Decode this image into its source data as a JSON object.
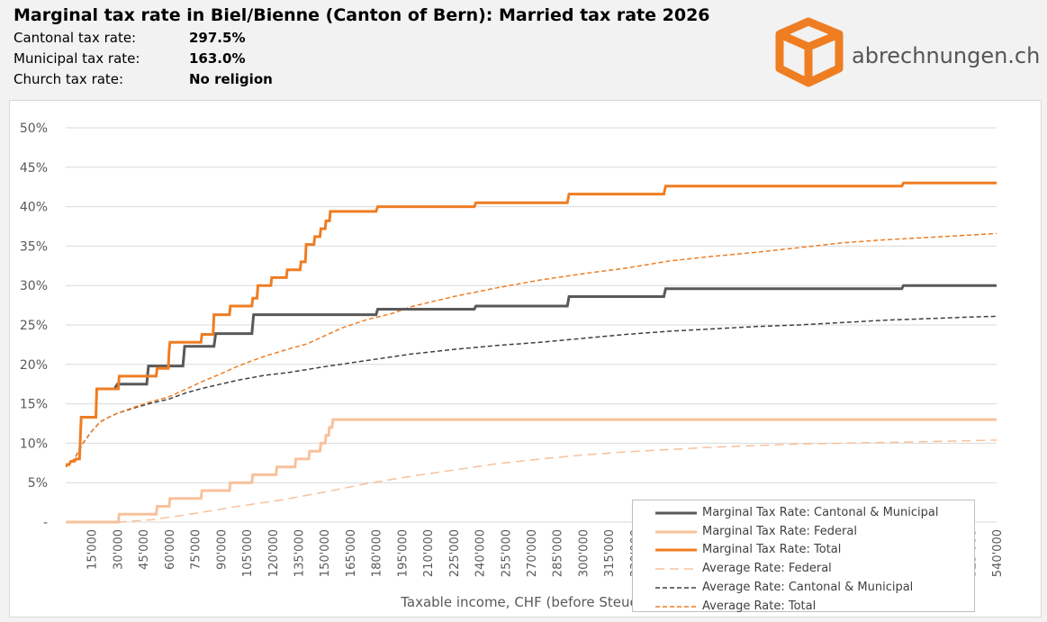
{
  "header": {
    "title": "Marginal tax rate in Biel/Bienne (Canton of Bern): Married tax rate 2026",
    "rows": [
      {
        "label": "Cantonal tax rate:",
        "value": "297.5%"
      },
      {
        "label": "Municipal tax rate:",
        "value": "163.0%"
      },
      {
        "label": "Church tax rate:",
        "value": "No religion"
      }
    ]
  },
  "logo": {
    "text": "abrechnungen.ch",
    "color": "#ef7d22"
  },
  "chart_data": {
    "type": "line",
    "title": "",
    "xlabel": "Taxable income, CHF (before Steuerfreibetrag)",
    "ylabel": "",
    "xlim": [
      0,
      540000
    ],
    "ylim": [
      0,
      0.5
    ],
    "x_ticks": [
      "15'000",
      "30'000",
      "45'000",
      "60'000",
      "75'000",
      "90'000",
      "105'000",
      "120'000",
      "135'000",
      "150'000",
      "165'000",
      "180'000",
      "195'000",
      "210'000",
      "225'000",
      "240'000",
      "255'000",
      "270'000",
      "285'000",
      "300'000",
      "315'000",
      "330'000",
      "345'000",
      "360'000",
      "375'000",
      "390'000",
      "405'000",
      "420'000",
      "435'000",
      "450'000",
      "465'000",
      "480'000",
      "495'000",
      "510'000",
      "525'000",
      "540'000"
    ],
    "x_tick_values": [
      15000,
      30000,
      45000,
      60000,
      75000,
      90000,
      105000,
      120000,
      135000,
      150000,
      165000,
      180000,
      195000,
      210000,
      225000,
      240000,
      255000,
      270000,
      285000,
      300000,
      315000,
      330000,
      345000,
      360000,
      375000,
      390000,
      405000,
      420000,
      435000,
      450000,
      465000,
      480000,
      495000,
      510000,
      525000,
      540000
    ],
    "y_ticks": [
      "-",
      "5%",
      "10%",
      "15%",
      "20%",
      "25%",
      "30%",
      "35%",
      "40%",
      "45%",
      "50%"
    ],
    "y_tick_values": [
      0,
      0.05,
      0.1,
      0.15,
      0.2,
      0.25,
      0.3,
      0.35,
      0.4,
      0.45,
      0.5
    ],
    "grid": "horizontal",
    "legend_position": "bottom-right",
    "series": [
      {
        "name": "Marginal Tax Rate: Cantonal & Municipal",
        "style": "solid",
        "color": "#595959",
        "points": [
          [
            28000,
            0.168
          ],
          [
            30000,
            0.175
          ],
          [
            47000,
            0.175
          ],
          [
            48000,
            0.198
          ],
          [
            68000,
            0.198
          ],
          [
            69000,
            0.223
          ],
          [
            86000,
            0.223
          ],
          [
            87000,
            0.239
          ],
          [
            108000,
            0.239
          ],
          [
            109000,
            0.263
          ],
          [
            180000,
            0.263
          ],
          [
            181000,
            0.27
          ],
          [
            237000,
            0.27
          ],
          [
            238000,
            0.274
          ],
          [
            291000,
            0.274
          ],
          [
            292000,
            0.286
          ],
          [
            347000,
            0.286
          ],
          [
            348000,
            0.296
          ],
          [
            485000,
            0.296
          ],
          [
            486000,
            0.3
          ],
          [
            540000,
            0.3
          ]
        ]
      },
      {
        "name": "Marginal Tax Rate: Federal",
        "style": "solid",
        "color": "#f8c19b",
        "points": [
          [
            0,
            0
          ],
          [
            30500,
            0
          ],
          [
            31000,
            0.01
          ],
          [
            52500,
            0.01
          ],
          [
            53000,
            0.02
          ],
          [
            60000,
            0.02
          ],
          [
            60500,
            0.03
          ],
          [
            78500,
            0.03
          ],
          [
            79000,
            0.04
          ],
          [
            95000,
            0.04
          ],
          [
            95500,
            0.05
          ],
          [
            108000,
            0.05
          ],
          [
            108500,
            0.06
          ],
          [
            122000,
            0.06
          ],
          [
            122500,
            0.07
          ],
          [
            133000,
            0.07
          ],
          [
            133500,
            0.08
          ],
          [
            141000,
            0.08
          ],
          [
            141500,
            0.09
          ],
          [
            147500,
            0.09
          ],
          [
            148000,
            0.1
          ],
          [
            150500,
            0.1
          ],
          [
            151000,
            0.11
          ],
          [
            152500,
            0.11
          ],
          [
            153000,
            0.12
          ],
          [
            154500,
            0.12
          ],
          [
            155000,
            0.13
          ],
          [
            540000,
            0.13
          ]
        ]
      },
      {
        "name": "Marginal Tax Rate: Total",
        "style": "solid",
        "color": "#ef7d22",
        "points": [
          [
            0,
            0.073
          ],
          [
            2000,
            0.073
          ],
          [
            3000,
            0.077
          ],
          [
            5000,
            0.077
          ],
          [
            6000,
            0.08
          ],
          [
            8000,
            0.08
          ],
          [
            9000,
            0.133
          ],
          [
            17500,
            0.133
          ],
          [
            18000,
            0.169
          ],
          [
            30500,
            0.169
          ],
          [
            31000,
            0.185
          ],
          [
            52500,
            0.185
          ],
          [
            53000,
            0.195
          ],
          [
            59500,
            0.195
          ],
          [
            60000,
            0.218
          ],
          [
            60500,
            0.228
          ],
          [
            78500,
            0.228
          ],
          [
            79000,
            0.238
          ],
          [
            85500,
            0.238
          ],
          [
            86000,
            0.263
          ],
          [
            95000,
            0.263
          ],
          [
            95500,
            0.274
          ],
          [
            108000,
            0.274
          ],
          [
            108500,
            0.284
          ],
          [
            111000,
            0.284
          ],
          [
            111500,
            0.3
          ],
          [
            119000,
            0.3
          ],
          [
            119500,
            0.31
          ],
          [
            128000,
            0.31
          ],
          [
            128500,
            0.32
          ],
          [
            136000,
            0.32
          ],
          [
            136500,
            0.33
          ],
          [
            139000,
            0.33
          ],
          [
            139500,
            0.352
          ],
          [
            144000,
            0.352
          ],
          [
            144500,
            0.362
          ],
          [
            147500,
            0.362
          ],
          [
            148000,
            0.372
          ],
          [
            150500,
            0.372
          ],
          [
            151000,
            0.382
          ],
          [
            153000,
            0.382
          ],
          [
            153500,
            0.394
          ],
          [
            180000,
            0.394
          ],
          [
            181000,
            0.4
          ],
          [
            237000,
            0.4
          ],
          [
            238000,
            0.405
          ],
          [
            291000,
            0.405
          ],
          [
            292000,
            0.416
          ],
          [
            347000,
            0.416
          ],
          [
            348000,
            0.426
          ],
          [
            485000,
            0.426
          ],
          [
            486000,
            0.43
          ],
          [
            540000,
            0.43
          ]
        ]
      },
      {
        "name": "Average Rate: Federal",
        "style": "dashed",
        "color": "#f8c19b",
        "points": [
          [
            30000,
            0
          ],
          [
            50000,
            0.003
          ],
          [
            75000,
            0.011
          ],
          [
            100000,
            0.02
          ],
          [
            125000,
            0.028
          ],
          [
            150000,
            0.038
          ],
          [
            175000,
            0.049
          ],
          [
            200000,
            0.058
          ],
          [
            225000,
            0.066
          ],
          [
            250000,
            0.074
          ],
          [
            275000,
            0.08
          ],
          [
            300000,
            0.085
          ],
          [
            325000,
            0.089
          ],
          [
            350000,
            0.092
          ],
          [
            375000,
            0.095
          ],
          [
            400000,
            0.097
          ],
          [
            425000,
            0.099
          ],
          [
            450000,
            0.1
          ],
          [
            475000,
            0.101
          ],
          [
            500000,
            0.102
          ],
          [
            520000,
            0.103
          ],
          [
            540000,
            0.104
          ]
        ]
      },
      {
        "name": "Average Rate: Cantonal & Municipal",
        "style": "dashed",
        "color": "#404040",
        "points": [
          [
            0,
            0.07
          ],
          [
            5000,
            0.08
          ],
          [
            10000,
            0.1
          ],
          [
            15000,
            0.115
          ],
          [
            20000,
            0.127
          ],
          [
            25000,
            0.133
          ],
          [
            30000,
            0.138
          ],
          [
            40000,
            0.145
          ],
          [
            50000,
            0.151
          ],
          [
            60000,
            0.156
          ],
          [
            70000,
            0.164
          ],
          [
            80000,
            0.17
          ],
          [
            90000,
            0.175
          ],
          [
            100000,
            0.18
          ],
          [
            115000,
            0.186
          ],
          [
            130000,
            0.19
          ],
          [
            150000,
            0.197
          ],
          [
            175000,
            0.205
          ],
          [
            200000,
            0.213
          ],
          [
            225000,
            0.219
          ],
          [
            250000,
            0.224
          ],
          [
            275000,
            0.228
          ],
          [
            300000,
            0.233
          ],
          [
            325000,
            0.238
          ],
          [
            350000,
            0.242
          ],
          [
            375000,
            0.245
          ],
          [
            400000,
            0.248
          ],
          [
            425000,
            0.25
          ],
          [
            450000,
            0.253
          ],
          [
            475000,
            0.256
          ],
          [
            500000,
            0.258
          ],
          [
            525000,
            0.26
          ],
          [
            540000,
            0.261
          ]
        ]
      },
      {
        "name": "Average Rate: Total",
        "style": "dashed",
        "color": "#ef7d22",
        "points": [
          [
            0,
            0.07
          ],
          [
            5000,
            0.08
          ],
          [
            10000,
            0.1
          ],
          [
            15000,
            0.115
          ],
          [
            20000,
            0.127
          ],
          [
            25000,
            0.133
          ],
          [
            30000,
            0.138
          ],
          [
            40000,
            0.146
          ],
          [
            50000,
            0.153
          ],
          [
            60000,
            0.159
          ],
          [
            70000,
            0.169
          ],
          [
            80000,
            0.179
          ],
          [
            90000,
            0.188
          ],
          [
            100000,
            0.198
          ],
          [
            115000,
            0.21
          ],
          [
            130000,
            0.22
          ],
          [
            140000,
            0.226
          ],
          [
            150000,
            0.236
          ],
          [
            160000,
            0.246
          ],
          [
            175000,
            0.257
          ],
          [
            190000,
            0.265
          ],
          [
            200000,
            0.273
          ],
          [
            225000,
            0.286
          ],
          [
            250000,
            0.297
          ],
          [
            275000,
            0.307
          ],
          [
            300000,
            0.315
          ],
          [
            325000,
            0.322
          ],
          [
            350000,
            0.331
          ],
          [
            375000,
            0.337
          ],
          [
            400000,
            0.342
          ],
          [
            425000,
            0.348
          ],
          [
            450000,
            0.354
          ],
          [
            475000,
            0.358
          ],
          [
            500000,
            0.361
          ],
          [
            525000,
            0.364
          ],
          [
            540000,
            0.366
          ]
        ]
      }
    ]
  }
}
